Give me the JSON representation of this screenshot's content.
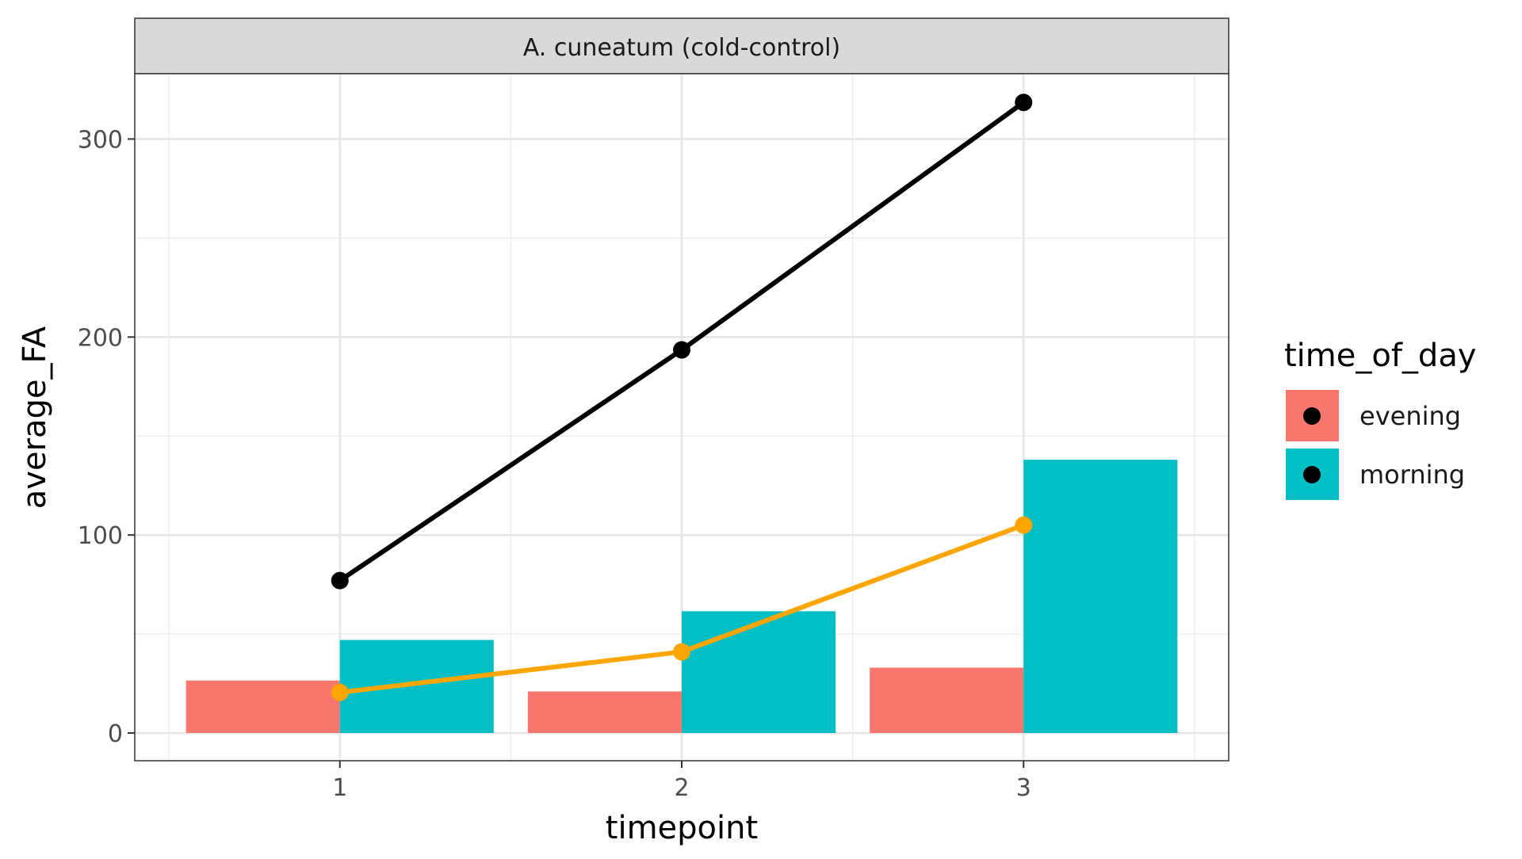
{
  "chart_data": {
    "type": "bar",
    "facet_title": "A. cuneatum (cold-control)",
    "xlabel": "timepoint",
    "ylabel": "average_FA",
    "categories": [
      "1",
      "2",
      "3"
    ],
    "ylim": [
      -14,
      333
    ],
    "y_ticks": [
      0,
      100,
      200,
      300
    ],
    "y_tick_labels": [
      "0",
      "100",
      "200",
      "300"
    ],
    "grid": true,
    "legend": {
      "title": "time_of_day",
      "placement": "right",
      "entries": [
        {
          "label": "evening",
          "color": "#F8766D"
        },
        {
          "label": "morning",
          "color": "#00BFC4"
        }
      ]
    },
    "series": [
      {
        "name": "evening",
        "kind": "bar",
        "color": "#F8766D",
        "values": [
          26.5,
          21,
          33
        ]
      },
      {
        "name": "morning",
        "kind": "bar",
        "color": "#00BFC4",
        "values": [
          47,
          61.5,
          138
        ]
      }
    ],
    "lines": [
      {
        "kind": "line",
        "color": "#000000",
        "values": [
          77,
          193.5,
          318.5
        ]
      },
      {
        "kind": "line",
        "color": "#FFA500",
        "values": [
          20.5,
          41,
          105
        ]
      }
    ]
  }
}
